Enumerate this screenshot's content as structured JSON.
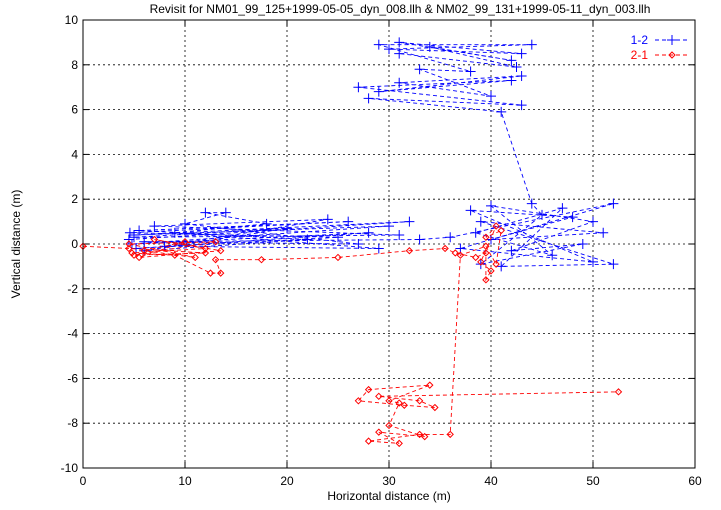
{
  "chart_data": {
    "type": "line",
    "title": "Revisit for NM01_99_125+1999-05-05_dyn_008.llh & NM02_99_131+1999-05-11_dyn_003.llh",
    "xlabel": "Horizontal distance (m)",
    "ylabel": "Vertical distance (m)",
    "xlim": [
      0,
      60
    ],
    "ylim": [
      -10,
      10
    ],
    "xticks": [
      0,
      10,
      20,
      30,
      40,
      50,
      60
    ],
    "yticks": [
      -10,
      -8,
      -6,
      -4,
      -2,
      0,
      2,
      4,
      6,
      8,
      10
    ],
    "grid": true,
    "legend_position": "top-right",
    "series": [
      {
        "name": "1-2",
        "color": "#0000ff",
        "marker": "plus",
        "points": [
          [
            4.5,
            0.2
          ],
          [
            32,
            1.0
          ],
          [
            5,
            0.4
          ],
          [
            30,
            0.8
          ],
          [
            4.8,
            0.0
          ],
          [
            28,
            0.5
          ],
          [
            5.2,
            -0.2
          ],
          [
            25,
            0.3
          ],
          [
            4.6,
            0.5
          ],
          [
            26,
            1.0
          ],
          [
            5.5,
            0.6
          ],
          [
            22,
            0.2
          ],
          [
            6,
            -0.3
          ],
          [
            20,
            0.7
          ],
          [
            5,
            0.3
          ],
          [
            31,
            0.4
          ],
          [
            7,
            0.8
          ],
          [
            24,
            1.1
          ],
          [
            8,
            -0.1
          ],
          [
            29,
            -0.2
          ],
          [
            9,
            0.5
          ],
          [
            18,
            0.9
          ],
          [
            12,
            1.4
          ],
          [
            14,
            1.4
          ],
          [
            10,
            0.9
          ],
          [
            27,
            0.0
          ],
          [
            6,
            0.1
          ],
          [
            33,
            0.2
          ],
          [
            36,
            0.3
          ],
          [
            52,
            1.8
          ],
          [
            37,
            -0.2
          ],
          [
            50,
            -0.8
          ],
          [
            38,
            1.5
          ],
          [
            48,
            1.2
          ],
          [
            40,
            0.2
          ],
          [
            51,
            0.5
          ],
          [
            39,
            1.0
          ],
          [
            52,
            -0.9
          ],
          [
            41,
            -1.0
          ],
          [
            47,
            1.6
          ],
          [
            38.5,
            0.5
          ],
          [
            46,
            -0.5
          ],
          [
            40,
            1.7
          ],
          [
            50,
            1.0
          ],
          [
            42,
            -0.3
          ],
          [
            49,
            0.0
          ],
          [
            39,
            -0.9
          ],
          [
            45,
            1.3
          ],
          [
            44,
            1.8
          ],
          [
            41,
            5.9
          ],
          [
            28,
            6.5
          ],
          [
            43,
            6.2
          ],
          [
            27,
            7.0
          ],
          [
            42,
            7.3
          ],
          [
            29,
            6.8
          ],
          [
            43,
            7.5
          ],
          [
            31,
            7.2
          ],
          [
            40,
            6.6
          ],
          [
            33,
            7.8
          ],
          [
            38,
            7.7
          ],
          [
            29,
            8.9
          ],
          [
            44,
            8.9
          ],
          [
            30,
            8.7
          ],
          [
            43,
            8.5
          ],
          [
            31,
            9.0
          ],
          [
            42,
            8.2
          ],
          [
            34,
            8.8
          ],
          [
            42.5,
            7.9
          ],
          [
            31,
            8.5
          ]
        ]
      },
      {
        "name": "2-1",
        "color": "#ff0000",
        "marker": "diamond",
        "points": [
          [
            0,
            -0.1
          ],
          [
            4.5,
            -0.2
          ],
          [
            12,
            -0.4
          ],
          [
            5,
            -0.5
          ],
          [
            13,
            0.1
          ],
          [
            4.5,
            0.0
          ],
          [
            11,
            -0.6
          ],
          [
            6,
            -0.3
          ],
          [
            10,
            0.1
          ],
          [
            5.5,
            -0.6
          ],
          [
            13.5,
            -0.3
          ],
          [
            7,
            0.2
          ],
          [
            12,
            -0.2
          ],
          [
            4.8,
            -0.4
          ],
          [
            9,
            -0.5
          ],
          [
            12.5,
            -1.3
          ],
          [
            13.5,
            -1.3
          ],
          [
            13,
            -0.7
          ],
          [
            17.5,
            -0.7
          ],
          [
            25,
            -0.6
          ],
          [
            32,
            -0.3
          ],
          [
            35.5,
            -0.2
          ],
          [
            36.5,
            -0.4
          ],
          [
            38.5,
            -0.6
          ],
          [
            39.5,
            -0.4
          ],
          [
            39.5,
            -1.6
          ],
          [
            40,
            -1.2
          ],
          [
            39,
            -0.8
          ],
          [
            40.5,
            0.8
          ],
          [
            39.5,
            0.3
          ],
          [
            41,
            0.6
          ],
          [
            40.5,
            -0.9
          ],
          [
            39.5,
            -0.1
          ],
          [
            37,
            -0.5
          ],
          [
            36,
            -8.5
          ],
          [
            33,
            -8.5
          ],
          [
            28,
            -8.8
          ],
          [
            31,
            -8.9
          ],
          [
            29,
            -8.4
          ],
          [
            33.5,
            -8.6
          ],
          [
            30,
            -8.1
          ],
          [
            31,
            -7.1
          ],
          [
            30,
            -7.0
          ],
          [
            34,
            -6.3
          ],
          [
            28,
            -6.5
          ],
          [
            27,
            -7.0
          ],
          [
            31.5,
            -7.2
          ],
          [
            34.5,
            -7.3
          ],
          [
            33,
            -7.0
          ],
          [
            29,
            -6.8
          ],
          [
            52.5,
            -6.6
          ]
        ]
      }
    ]
  }
}
